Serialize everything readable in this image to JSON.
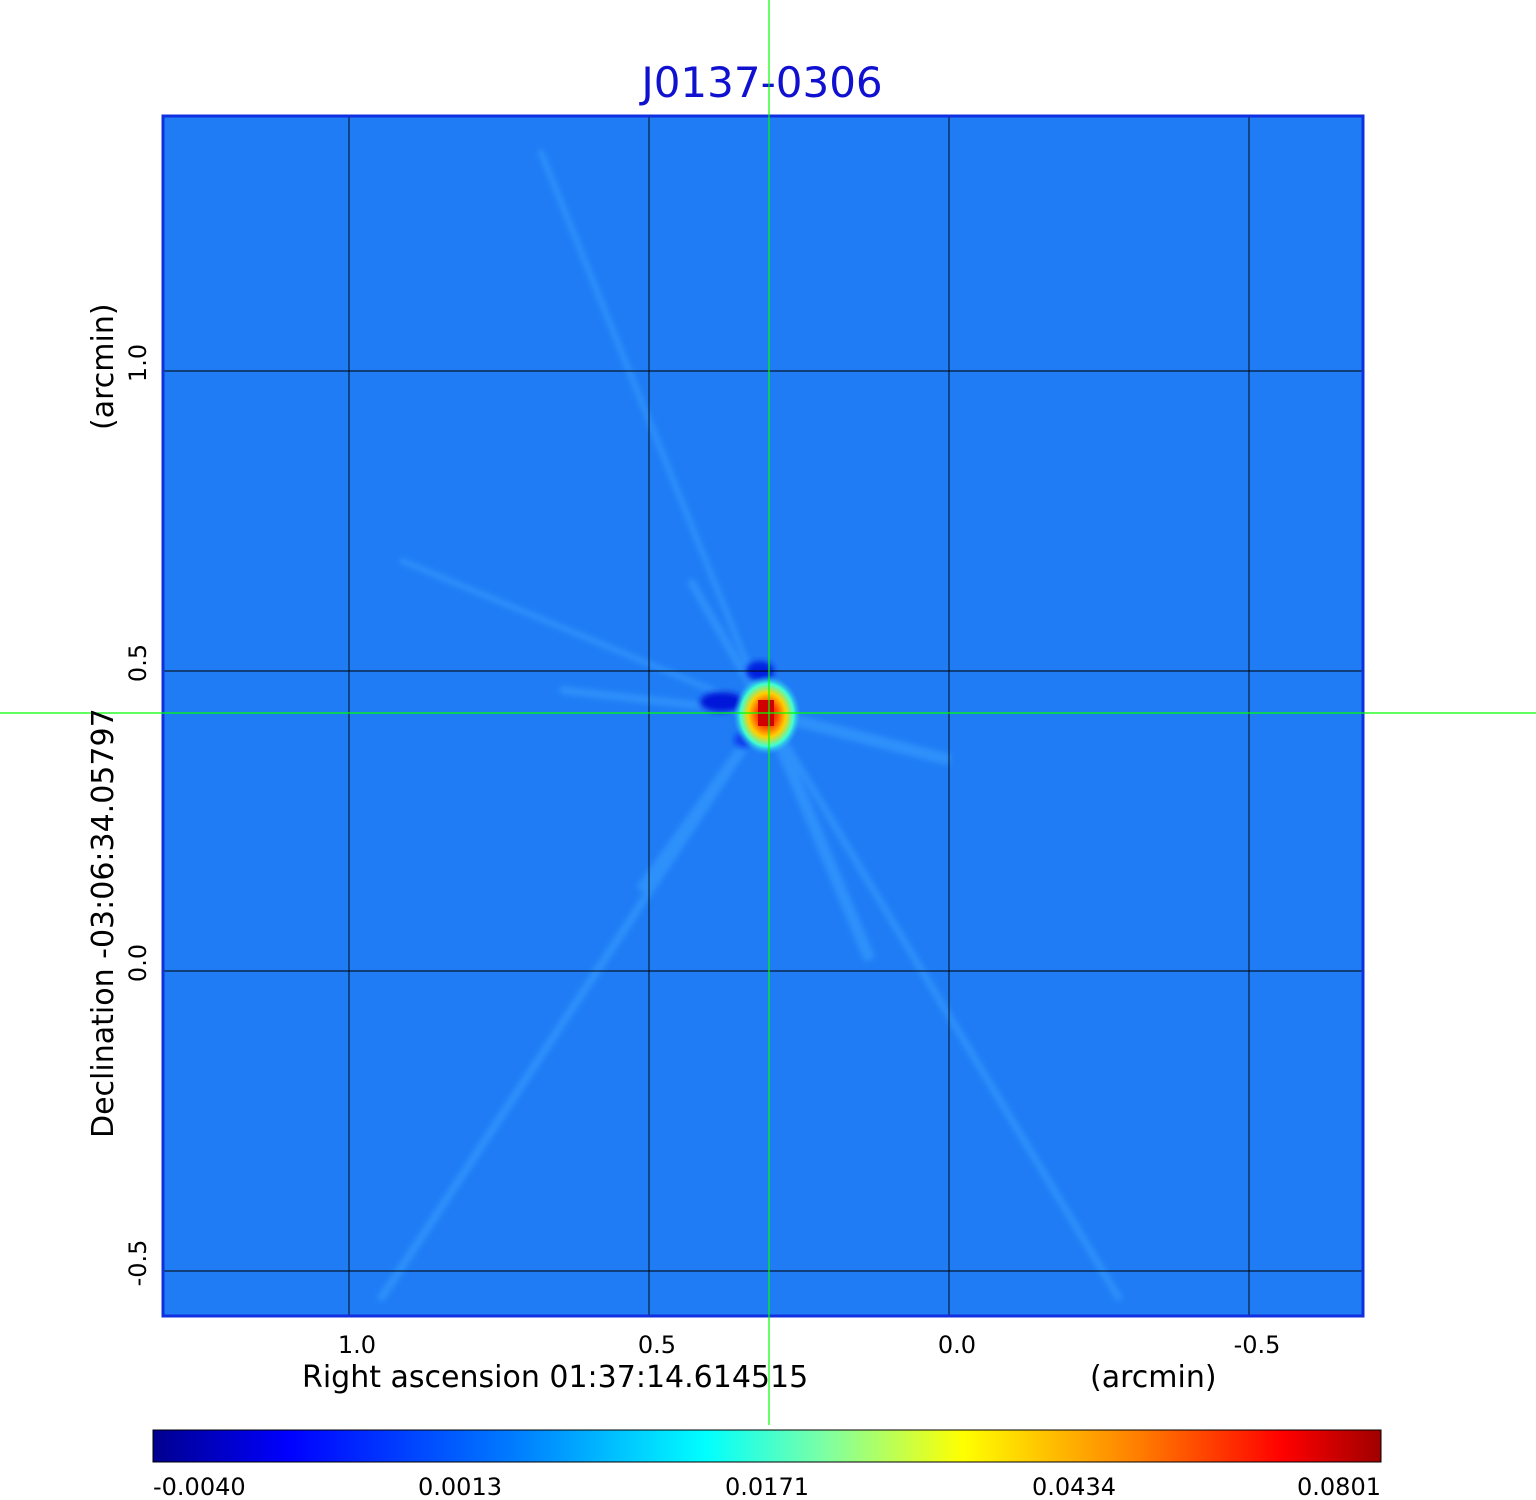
{
  "chart_data": {
    "type": "heatmap",
    "title": "J0137-0306",
    "xlabel": "Right ascension  01:37:14.614515",
    "xunit": "(arcmin)",
    "ylabel": "Declination  -03:06:34.05797",
    "yunit": "(arcmin)",
    "x_ticks": [
      {
        "value": 1.0,
        "label": "1.0"
      },
      {
        "value": 0.5,
        "label": "0.5"
      },
      {
        "value": 0.0,
        "label": "0.0"
      },
      {
        "value": -0.5,
        "label": "-0.5"
      }
    ],
    "y_ticks": [
      {
        "value": 1.0,
        "label": "1.0"
      },
      {
        "value": 0.5,
        "label": "0.5"
      },
      {
        "value": 0.0,
        "label": "0.0"
      },
      {
        "value": -0.5,
        "label": "-0.5"
      }
    ],
    "xlim": [
      1.31,
      -0.69
    ],
    "ylim": [
      -0.575,
      1.425
    ],
    "grid": true,
    "crosshair": {
      "x": 0.3,
      "y": 0.43,
      "color": "#00ff00"
    },
    "source_peak": {
      "x": 0.3,
      "y": 0.43,
      "value": 0.0801
    },
    "colorbar": {
      "colormap": "jet",
      "ticks": [
        "-0.0040",
        "0.0013",
        "0.0171",
        "0.0434",
        "0.0801"
      ],
      "min": -0.004,
      "max": 0.0801
    },
    "colors": {
      "title": "#1010d0",
      "frame": "#1030e0",
      "background_map": "#1f7cf5"
    }
  }
}
